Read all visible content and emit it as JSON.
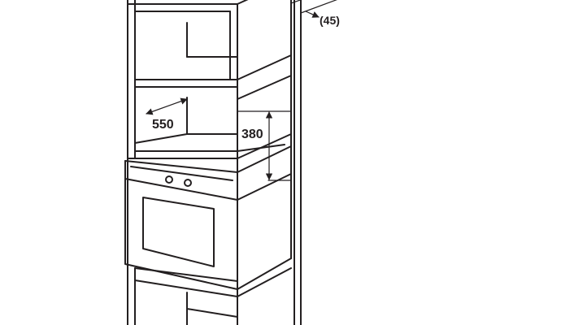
{
  "diagram": {
    "dimensions": {
      "depth": "550",
      "niche_height": "380",
      "gap": "(45)"
    },
    "colors": {
      "stroke": "#231f20",
      "background": "#ffffff"
    }
  }
}
